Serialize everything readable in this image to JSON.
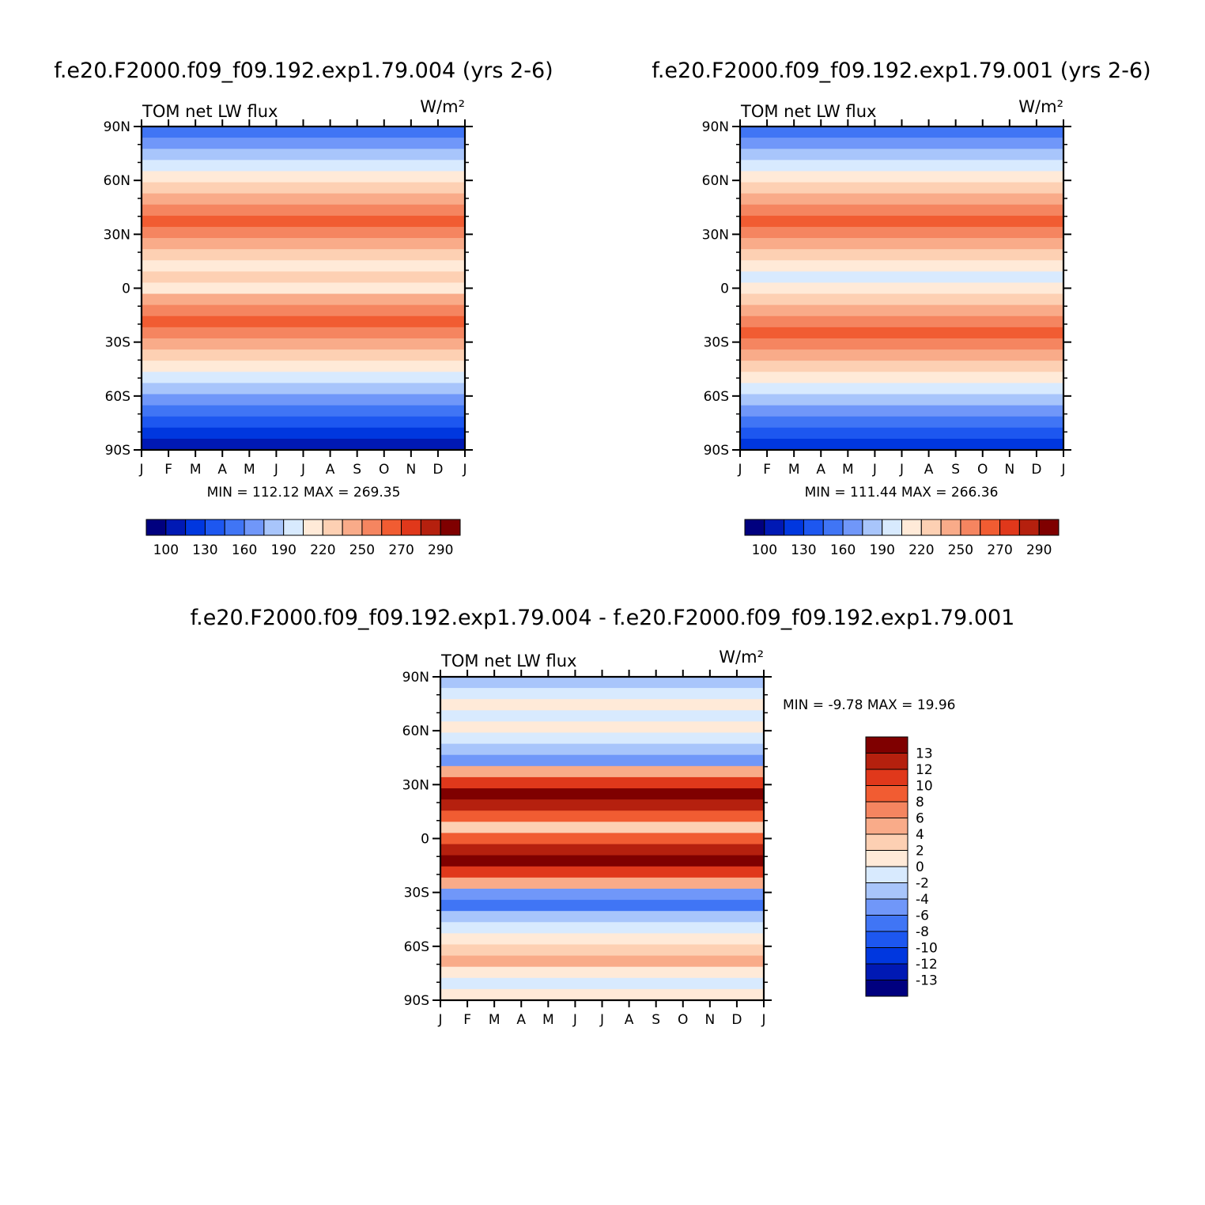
{
  "chart_data": [
    {
      "type": "heatmap",
      "title": "f.e20.F2000.f09_f09.192.exp1.79.004 (yrs 2-6)",
      "left_label": "TOM net LW flux",
      "units": "W/m²",
      "x_ticks": [
        "J",
        "F",
        "M",
        "A",
        "M",
        "J",
        "J",
        "A",
        "S",
        "O",
        "N",
        "D",
        "J"
      ],
      "y_ticks": [
        "90N",
        "60N",
        "30N",
        "0",
        "30S",
        "60S",
        "90S"
      ],
      "stats": "MIN = 112.12 MAX = 269.35",
      "colorbar": {
        "orientation": "horizontal",
        "labels": [
          "100",
          "130",
          "160",
          "190",
          "220",
          "250",
          "270",
          "290"
        ],
        "colors": [
          "#00007f",
          "#0019b4",
          "#0037df",
          "#1d57f0",
          "#4075f5",
          "#7097f9",
          "#a8c5fb",
          "#d8eafe",
          "#ffead8",
          "#fdd0b3",
          "#f9ab89",
          "#f58560",
          "#f15c32",
          "#e0381b",
          "#b5200e",
          "#7f0000"
        ]
      },
      "band_colors": [
        "#4075f5",
        "#7097f9",
        "#a8c5fb",
        "#d8eafe",
        "#ffead8",
        "#fdd0b3",
        "#f9ab89",
        "#f58560",
        "#f15c32",
        "#f58560",
        "#f9ab89",
        "#fdd0b3",
        "#ffead8",
        "#fdd0b3",
        "#ffead8",
        "#f9ab89",
        "#f58560",
        "#f15c32",
        "#f58560",
        "#f9ab89",
        "#fdd0b3",
        "#ffead8",
        "#d8eafe",
        "#a8c5fb",
        "#7097f9",
        "#4075f5",
        "#1d57f0",
        "#0037df",
        "#0019b4"
      ]
    },
    {
      "type": "heatmap",
      "title": "f.e20.F2000.f09_f09.192.exp1.79.001 (yrs 2-6)",
      "left_label": "TOM net LW flux",
      "units": "W/m²",
      "x_ticks": [
        "J",
        "F",
        "M",
        "A",
        "M",
        "J",
        "J",
        "A",
        "S",
        "O",
        "N",
        "D",
        "J"
      ],
      "y_ticks": [
        "90N",
        "60N",
        "30N",
        "0",
        "30S",
        "60S",
        "90S"
      ],
      "stats": "MIN = 111.44 MAX = 266.36",
      "colorbar": {
        "orientation": "horizontal",
        "labels": [
          "100",
          "130",
          "160",
          "190",
          "220",
          "250",
          "270",
          "290"
        ],
        "colors": [
          "#00007f",
          "#0019b4",
          "#0037df",
          "#1d57f0",
          "#4075f5",
          "#7097f9",
          "#a8c5fb",
          "#d8eafe",
          "#ffead8",
          "#fdd0b3",
          "#f9ab89",
          "#f58560",
          "#f15c32",
          "#e0381b",
          "#b5200e",
          "#7f0000"
        ]
      },
      "band_colors": [
        "#4075f5",
        "#7097f9",
        "#a8c5fb",
        "#d8eafe",
        "#ffead8",
        "#fdd0b3",
        "#f9ab89",
        "#f58560",
        "#f15c32",
        "#f58560",
        "#f9ab89",
        "#fdd0b3",
        "#ffead8",
        "#d8eafe",
        "#ffead8",
        "#fdd0b3",
        "#f9ab89",
        "#f58560",
        "#f15c32",
        "#f58560",
        "#f9ab89",
        "#fdd0b3",
        "#ffead8",
        "#d8eafe",
        "#a8c5fb",
        "#7097f9",
        "#4075f5",
        "#1d57f0",
        "#0037df"
      ]
    },
    {
      "type": "heatmap",
      "title": "f.e20.F2000.f09_f09.192.exp1.79.004 - f.e20.F2000.f09_f09.192.exp1.79.001",
      "left_label": "TOM net LW flux",
      "units": "W/m²",
      "x_ticks": [
        "J",
        "F",
        "M",
        "A",
        "M",
        "J",
        "J",
        "A",
        "S",
        "O",
        "N",
        "D",
        "J"
      ],
      "y_ticks": [
        "90N",
        "60N",
        "30N",
        "0",
        "30S",
        "60S",
        "90S"
      ],
      "stats": "MIN = -9.78 MAX = 19.96",
      "colorbar": {
        "orientation": "vertical",
        "labels": [
          "13",
          "12",
          "10",
          "8",
          "6",
          "4",
          "2",
          "0",
          "-2",
          "-4",
          "-6",
          "-8",
          "-10",
          "-12",
          "-13"
        ],
        "colors": [
          "#7f0000",
          "#b5200e",
          "#e0381b",
          "#f15c32",
          "#f58560",
          "#f9ab89",
          "#fdd0b3",
          "#ffead8",
          "#d8eafe",
          "#a8c5fb",
          "#7097f9",
          "#4075f5",
          "#1d57f0",
          "#0037df",
          "#0019b4",
          "#00007f"
        ]
      },
      "band_colors": [
        "#a8c5fb",
        "#d8eafe",
        "#ffead8",
        "#d8eafe",
        "#ffead8",
        "#d8eafe",
        "#a8c5fb",
        "#7097f9",
        "#f9ab89",
        "#e0381b",
        "#7f0000",
        "#b5200e",
        "#f15c32",
        "#fdd0b3",
        "#f15c32",
        "#b5200e",
        "#7f0000",
        "#e0381b",
        "#f9ab89",
        "#7097f9",
        "#4075f5",
        "#a8c5fb",
        "#d8eafe",
        "#ffead8",
        "#fdd0b3",
        "#f9ab89",
        "#ffead8",
        "#d8eafe",
        "#ffead8"
      ]
    }
  ]
}
